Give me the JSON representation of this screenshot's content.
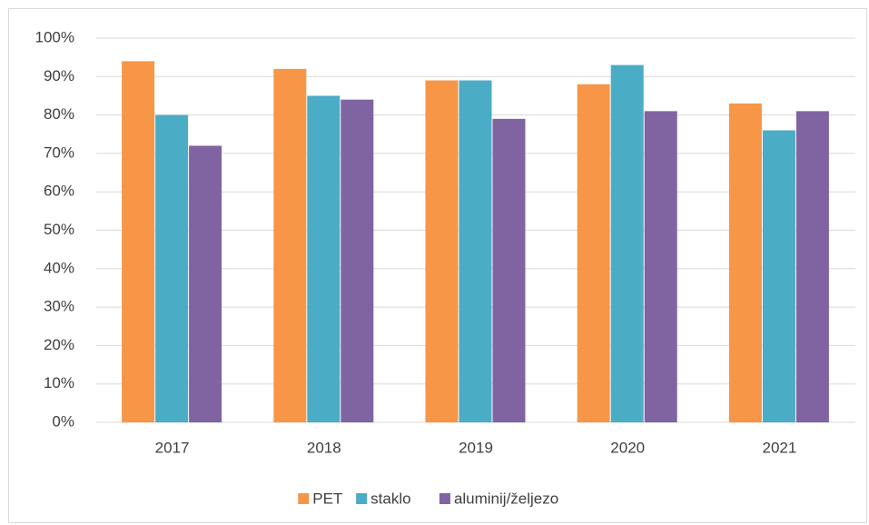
{
  "chart_data": {
    "type": "bar",
    "categories": [
      "2017",
      "2018",
      "2019",
      "2020",
      "2021"
    ],
    "series": [
      {
        "name": "PET",
        "color": "#f79646",
        "values": [
          94,
          92,
          89,
          88,
          83
        ]
      },
      {
        "name": "staklo",
        "color": "#4bacc6",
        "values": [
          80,
          85,
          89,
          93,
          76
        ]
      },
      {
        "name": "aluminij/željezo",
        "color": "#8064a2",
        "values": [
          72,
          84,
          79,
          81,
          81
        ]
      }
    ],
    "ylim": [
      0,
      100
    ],
    "yticks": [
      {
        "value": 0,
        "label": "0%"
      },
      {
        "value": 10,
        "label": "10%"
      },
      {
        "value": 20,
        "label": "20%"
      },
      {
        "value": 30,
        "label": "30%"
      },
      {
        "value": 40,
        "label": "40%"
      },
      {
        "value": 50,
        "label": "50%"
      },
      {
        "value": 60,
        "label": "60%"
      },
      {
        "value": 70,
        "label": "70%"
      },
      {
        "value": 80,
        "label": "80%"
      },
      {
        "value": 90,
        "label": "90%"
      },
      {
        "value": 100,
        "label": "100%"
      }
    ],
    "grid": true,
    "legend": "bottom"
  }
}
